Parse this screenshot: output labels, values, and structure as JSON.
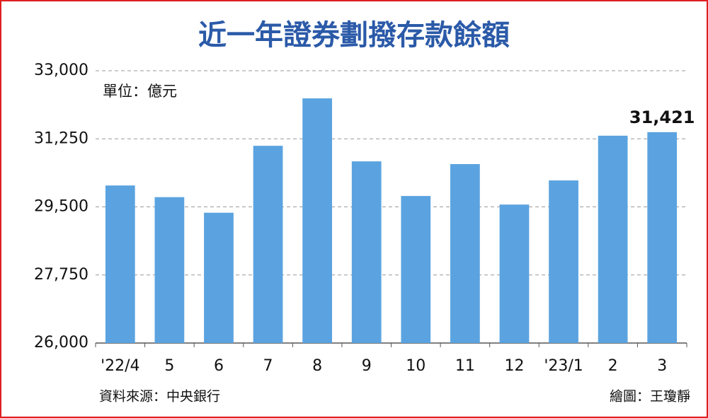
{
  "chart_data": {
    "type": "bar",
    "title": "近一年證券劃撥存款餘額",
    "unit": "單位：億元",
    "source": "資料來源：中央銀行",
    "credit": "繪圖：王瓊靜",
    "categories": [
      "'22/4",
      "5",
      "6",
      "7",
      "8",
      "9",
      "10",
      "11",
      "12",
      "'23/1",
      "2",
      "3"
    ],
    "values": [
      30050,
      29750,
      29350,
      31070,
      32290,
      30670,
      29780,
      30600,
      29560,
      30180,
      31330,
      31421
    ],
    "value_labels": [
      null,
      null,
      null,
      null,
      null,
      null,
      null,
      null,
      null,
      null,
      null,
      "31,421"
    ],
    "color": "#5ba3e0",
    "ylim": [
      26000,
      33000
    ],
    "yticks": [
      {
        "value": 26000,
        "label": "26,000"
      },
      {
        "value": 27750,
        "label": "27,750"
      },
      {
        "value": 29500,
        "label": "29,500"
      },
      {
        "value": 31250,
        "label": "31,250"
      },
      {
        "value": 33000,
        "label": "33,000"
      }
    ],
    "grid": true
  }
}
